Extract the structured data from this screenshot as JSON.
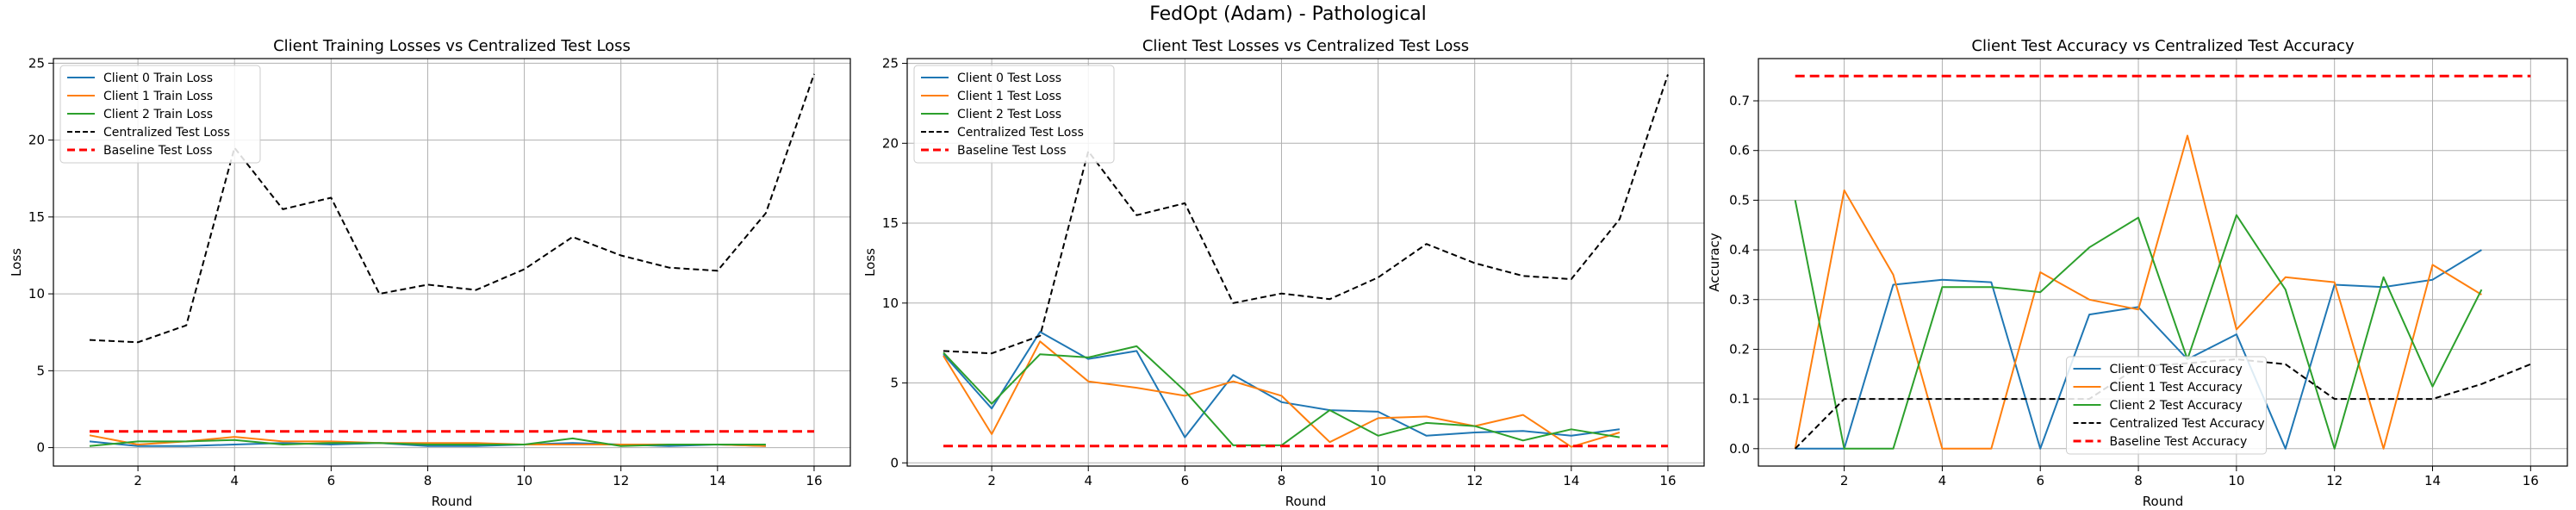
{
  "suptitle": "FedOpt (Adam) - Pathological",
  "chart_data": [
    {
      "type": "line",
      "title": "Client Training Losses vs Centralized Test Loss",
      "xlabel": "Round",
      "ylabel": "Loss",
      "xlim": [
        0.25,
        16.75
      ],
      "ylim": [
        -1.2,
        25.3
      ],
      "xticks": [
        2,
        4,
        6,
        8,
        10,
        12,
        14,
        16
      ],
      "yticks": [
        0,
        5,
        10,
        15,
        20,
        25
      ],
      "grid": true,
      "legend_position": "upper-left",
      "series": [
        {
          "name": "Client 0 Train Loss",
          "color": "#1f77b4",
          "dashed": false,
          "x": [
            1,
            2,
            3,
            4,
            5,
            6,
            7,
            8,
            9,
            10,
            11,
            12,
            13,
            14,
            15
          ],
          "y": [
            0.4,
            0.1,
            0.1,
            0.2,
            0.3,
            0.2,
            0.3,
            0.1,
            0.1,
            0.2,
            0.3,
            0.2,
            0.1,
            0.2,
            0.1
          ]
        },
        {
          "name": "Client 1 Train Loss",
          "color": "#ff7f0e",
          "dashed": false,
          "x": [
            1,
            2,
            3,
            4,
            5,
            6,
            7,
            8,
            9,
            10,
            11,
            12,
            13,
            14,
            15
          ],
          "y": [
            0.8,
            0.2,
            0.4,
            0.7,
            0.4,
            0.4,
            0.3,
            0.3,
            0.3,
            0.2,
            0.2,
            0.2,
            0.2,
            0.2,
            0.1
          ]
        },
        {
          "name": "Client 2 Train Loss",
          "color": "#2ca02c",
          "dashed": false,
          "x": [
            1,
            2,
            3,
            4,
            5,
            6,
            7,
            8,
            9,
            10,
            11,
            12,
            13,
            14,
            15
          ],
          "y": [
            0.1,
            0.4,
            0.4,
            0.5,
            0.2,
            0.3,
            0.3,
            0.2,
            0.2,
            0.2,
            0.6,
            0.1,
            0.2,
            0.2,
            0.2
          ]
        },
        {
          "name": "Centralized Test Loss",
          "color": "#000000",
          "dashed": true,
          "x": [
            1,
            2,
            3,
            4,
            5,
            6,
            7,
            8,
            9,
            10,
            11,
            12,
            13,
            14,
            15,
            16
          ],
          "y": [
            7.0,
            6.85,
            7.95,
            19.5,
            15.5,
            16.25,
            10.0,
            10.6,
            10.25,
            11.6,
            13.7,
            12.5,
            11.7,
            11.5,
            15.25,
            24.3
          ]
        },
        {
          "name": "Baseline Test Loss",
          "color": "#ff0000",
          "dashed": true,
          "thick": true,
          "x": [
            1,
            16
          ],
          "y": [
            1.05,
            1.05
          ]
        }
      ]
    },
    {
      "type": "line",
      "title": "Client Test Losses vs Centralized Test Loss",
      "xlabel": "Round",
      "ylabel": "Loss",
      "xlim": [
        0.25,
        16.75
      ],
      "ylim": [
        -0.2,
        25.3
      ],
      "xticks": [
        2,
        4,
        6,
        8,
        10,
        12,
        14,
        16
      ],
      "yticks": [
        0,
        5,
        10,
        15,
        20,
        25
      ],
      "grid": true,
      "legend_position": "upper-left",
      "series": [
        {
          "name": "Client 0 Test Loss",
          "color": "#1f77b4",
          "dashed": false,
          "x": [
            1,
            2,
            3,
            4,
            5,
            6,
            7,
            8,
            9,
            10,
            11,
            12,
            13,
            14,
            15
          ],
          "y": [
            6.8,
            3.4,
            8.2,
            6.5,
            7.0,
            1.6,
            5.5,
            3.8,
            3.3,
            3.2,
            1.7,
            1.9,
            2.0,
            1.7,
            2.1
          ]
        },
        {
          "name": "Client 1 Test Loss",
          "color": "#ff7f0e",
          "dashed": false,
          "x": [
            1,
            2,
            3,
            4,
            5,
            6,
            7,
            8,
            9,
            10,
            11,
            12,
            13,
            14,
            15
          ],
          "y": [
            6.7,
            1.8,
            7.6,
            5.1,
            4.7,
            4.2,
            5.1,
            4.2,
            1.3,
            2.8,
            2.9,
            2.3,
            3.0,
            1.0,
            1.9
          ]
        },
        {
          "name": "Client 2 Test Loss",
          "color": "#2ca02c",
          "dashed": false,
          "x": [
            1,
            2,
            3,
            4,
            5,
            6,
            7,
            8,
            9,
            10,
            11,
            12,
            13,
            14,
            15
          ],
          "y": [
            6.9,
            3.7,
            6.8,
            6.6,
            7.3,
            4.5,
            1.1,
            1.1,
            3.3,
            1.7,
            2.5,
            2.3,
            1.4,
            2.1,
            1.6
          ]
        },
        {
          "name": "Centralized Test Loss",
          "color": "#000000",
          "dashed": true,
          "x": [
            1,
            2,
            3,
            4,
            5,
            6,
            7,
            8,
            9,
            10,
            11,
            12,
            13,
            14,
            15,
            16
          ],
          "y": [
            7.0,
            6.85,
            7.95,
            19.5,
            15.5,
            16.25,
            10.0,
            10.6,
            10.25,
            11.6,
            13.7,
            12.5,
            11.7,
            11.5,
            15.25,
            24.3
          ]
        },
        {
          "name": "Baseline Test Loss",
          "color": "#ff0000",
          "dashed": true,
          "thick": true,
          "x": [
            1,
            16
          ],
          "y": [
            1.05,
            1.05
          ]
        }
      ]
    },
    {
      "type": "line",
      "title": "Client Test Accuracy vs Centralized Test Accuracy",
      "xlabel": "Round",
      "ylabel": "Accuracy",
      "xlim": [
        0.25,
        16.75
      ],
      "ylim": [
        -0.035,
        0.785
      ],
      "xticks": [
        2,
        4,
        6,
        8,
        10,
        12,
        14,
        16
      ],
      "yticks": [
        0.0,
        0.1,
        0.2,
        0.3,
        0.4,
        0.5,
        0.6,
        0.7
      ],
      "grid": true,
      "legend_position": "lower-center",
      "series": [
        {
          "name": "Client 0 Test Accuracy",
          "color": "#1f77b4",
          "dashed": false,
          "x": [
            1,
            2,
            3,
            4,
            5,
            6,
            7,
            8,
            9,
            10,
            11,
            12,
            13,
            14,
            15
          ],
          "y": [
            0.0,
            0.0,
            0.33,
            0.34,
            0.335,
            0.0,
            0.27,
            0.285,
            0.18,
            0.23,
            0.0,
            0.33,
            0.325,
            0.34,
            0.4
          ]
        },
        {
          "name": "Client 1 Test Accuracy",
          "color": "#ff7f0e",
          "dashed": false,
          "x": [
            1,
            2,
            3,
            4,
            5,
            6,
            7,
            8,
            9,
            10,
            11,
            12,
            13,
            14,
            15
          ],
          "y": [
            0.0,
            0.52,
            0.35,
            0.0,
            0.0,
            0.355,
            0.3,
            0.28,
            0.63,
            0.24,
            0.345,
            0.335,
            0.0,
            0.37,
            0.31
          ]
        },
        {
          "name": "Client 2 Test Accuracy",
          "color": "#2ca02c",
          "dashed": false,
          "x": [
            1,
            2,
            3,
            4,
            5,
            6,
            7,
            8,
            9,
            10,
            11,
            12,
            13,
            14,
            15
          ],
          "y": [
            0.5,
            0.0,
            0.0,
            0.325,
            0.325,
            0.315,
            0.405,
            0.465,
            0.18,
            0.47,
            0.32,
            0.0,
            0.345,
            0.125,
            0.32
          ]
        },
        {
          "name": "Centralized Test Accuracy",
          "color": "#000000",
          "dashed": true,
          "x": [
            1,
            2,
            3,
            4,
            5,
            6,
            7,
            8,
            9,
            10,
            11,
            12,
            13,
            14,
            15,
            16
          ],
          "y": [
            0.0,
            0.1,
            0.1,
            0.1,
            0.1,
            0.1,
            0.1,
            0.165,
            0.172,
            0.18,
            0.17,
            0.1,
            0.1,
            0.1,
            0.13,
            0.17
          ]
        },
        {
          "name": "Baseline Test Accuracy",
          "color": "#ff0000",
          "dashed": true,
          "thick": true,
          "x": [
            1,
            16
          ],
          "y": [
            0.75,
            0.75
          ]
        }
      ]
    }
  ]
}
